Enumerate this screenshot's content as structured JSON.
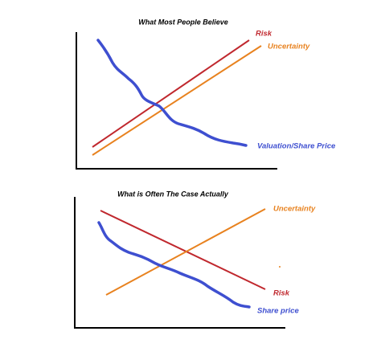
{
  "panels": [
    {
      "title": "What Most People Believe",
      "labels": [
        "Risk",
        "Uncertainty",
        "Valuation/Share Price"
      ]
    },
    {
      "title": "What is Often The Case Actually",
      "labels": [
        "Uncertainty",
        "Risk",
        "Share price"
      ]
    }
  ]
}
